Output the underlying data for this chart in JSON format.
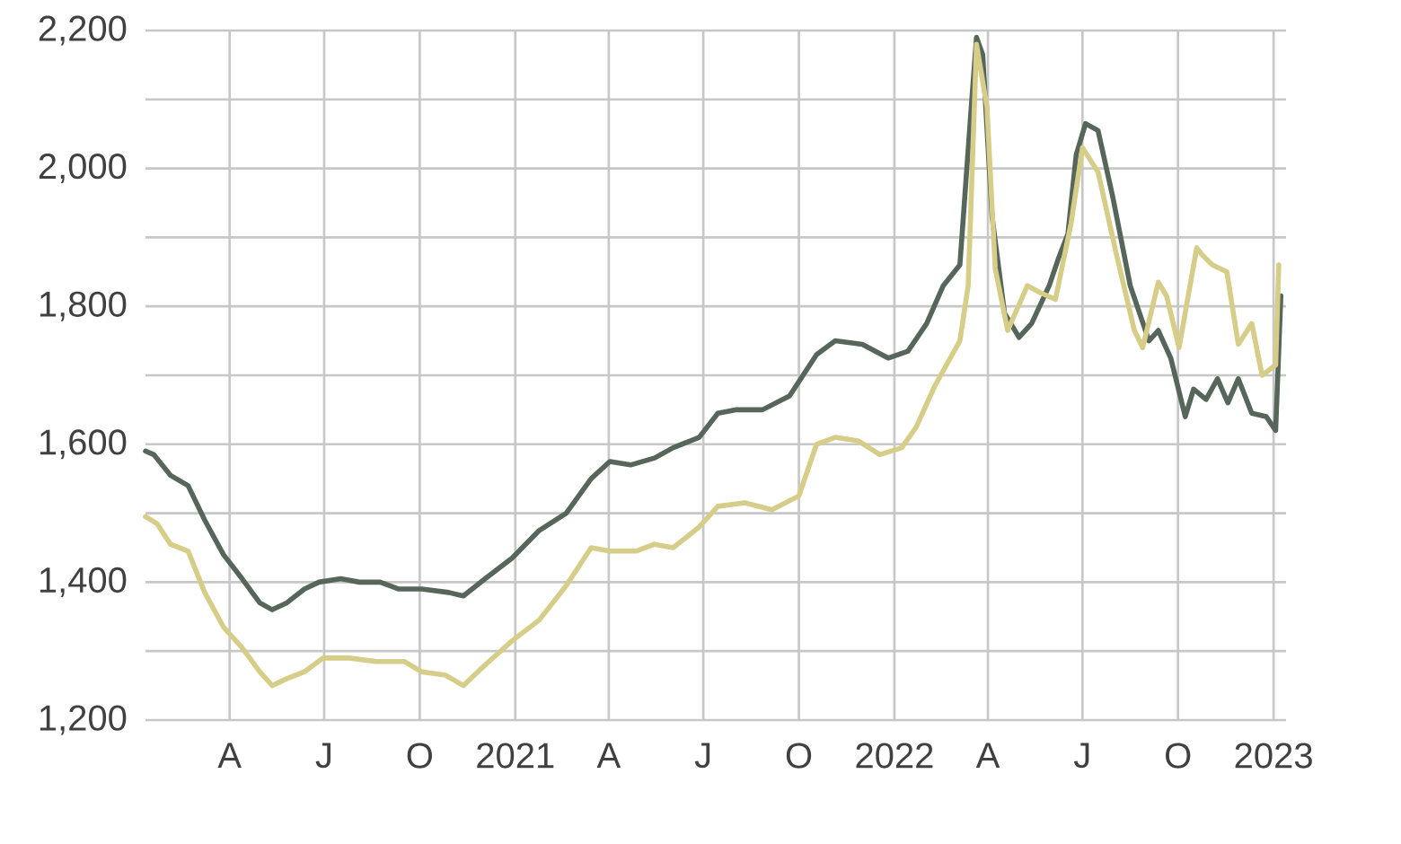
{
  "chart_data": {
    "type": "line",
    "xlim": [
      "2020-01-11",
      "2023-01-13"
    ],
    "ylim": [
      1200,
      2200
    ],
    "xticks": [
      {
        "value": "2020-04-01",
        "label": "A"
      },
      {
        "value": "2020-07-01",
        "label": "J"
      },
      {
        "value": "2020-10-01",
        "label": "O"
      },
      {
        "value": "2021-01-01",
        "label": "2021"
      },
      {
        "value": "2021-04-01",
        "label": "A"
      },
      {
        "value": "2021-07-01",
        "label": "J"
      },
      {
        "value": "2021-10-01",
        "label": "O"
      },
      {
        "value": "2022-01-01",
        "label": "2022"
      },
      {
        "value": "2022-04-01",
        "label": "A"
      },
      {
        "value": "2022-07-01",
        "label": "J"
      },
      {
        "value": "2022-10-01",
        "label": "O"
      },
      {
        "value": "2023-01-01",
        "label": "2023"
      }
    ],
    "yticks": [
      {
        "value": 1200,
        "label": "1,200"
      },
      {
        "value": 1300,
        "label": null
      },
      {
        "value": 1400,
        "label": "1,400"
      },
      {
        "value": 1500,
        "label": null
      },
      {
        "value": 1600,
        "label": "1,600"
      },
      {
        "value": 1700,
        "label": null
      },
      {
        "value": 1800,
        "label": "1,800"
      },
      {
        "value": 1900,
        "label": null
      },
      {
        "value": 2000,
        "label": "2,000"
      },
      {
        "value": 2100,
        "label": null
      },
      {
        "value": 2200,
        "label": "2,200"
      }
    ],
    "grid": true,
    "series": [
      {
        "color": "#56665a",
        "x": [
          "2020-01-11",
          "2020-01-19",
          "2020-02-04",
          "2020-02-21",
          "2020-03-08",
          "2020-03-26",
          "2020-04-13",
          "2020-04-30",
          "2020-05-12",
          "2020-05-26",
          "2020-06-12",
          "2020-06-26",
          "2020-07-17",
          "2020-08-04",
          "2020-08-24",
          "2020-09-11",
          "2020-10-03",
          "2020-10-29",
          "2020-11-12",
          "2020-12-03",
          "2020-12-29",
          "2021-01-24",
          "2021-02-19",
          "2021-03-15",
          "2021-04-02",
          "2021-04-22",
          "2021-05-15",
          "2021-06-02",
          "2021-06-27",
          "2021-07-15",
          "2021-08-01",
          "2021-08-27",
          "2021-09-22",
          "2021-10-18",
          "2021-11-05",
          "2021-12-01",
          "2021-12-26",
          "2022-01-14",
          "2022-02-01",
          "2022-02-17",
          "2022-03-05",
          "2022-03-16",
          "2022-03-21",
          "2022-03-27",
          "2022-04-05",
          "2022-04-17",
          "2022-05-01",
          "2022-05-13",
          "2022-05-30",
          "2022-06-08",
          "2022-06-17",
          "2022-06-25",
          "2022-07-04",
          "2022-07-16",
          "2022-07-30",
          "2022-08-16",
          "2022-09-03",
          "2022-09-12",
          "2022-09-24",
          "2022-10-08",
          "2022-10-16",
          "2022-10-28",
          "2022-11-08",
          "2022-11-18",
          "2022-11-28",
          "2022-12-11",
          "2022-12-25",
          "2023-01-03",
          "2023-01-08"
        ],
        "values": [
          1590,
          1585,
          1555,
          1540,
          1490,
          1440,
          1405,
          1370,
          1360,
          1370,
          1390,
          1400,
          1405,
          1400,
          1400,
          1390,
          1390,
          1385,
          1380,
          1405,
          1435,
          1475,
          1500,
          1550,
          1575,
          1570,
          1580,
          1595,
          1610,
          1645,
          1650,
          1650,
          1670,
          1730,
          1750,
          1745,
          1725,
          1735,
          1775,
          1830,
          1860,
          2090,
          2190,
          2165,
          1930,
          1790,
          1755,
          1775,
          1830,
          1870,
          1905,
          2020,
          2065,
          2055,
          1960,
          1830,
          1750,
          1765,
          1725,
          1640,
          1680,
          1665,
          1695,
          1660,
          1695,
          1645,
          1640,
          1620,
          1815
        ]
      },
      {
        "color": "#d6cd88",
        "x": [
          "2020-01-11",
          "2020-01-22",
          "2020-02-04",
          "2020-02-21",
          "2020-03-08",
          "2020-03-26",
          "2020-04-13",
          "2020-04-30",
          "2020-05-12",
          "2020-05-26",
          "2020-06-12",
          "2020-06-30",
          "2020-07-25",
          "2020-08-20",
          "2020-09-16",
          "2020-10-03",
          "2020-10-26",
          "2020-11-12",
          "2020-12-03",
          "2020-12-29",
          "2021-01-24",
          "2021-02-19",
          "2021-03-15",
          "2021-04-02",
          "2021-04-27",
          "2021-05-15",
          "2021-06-02",
          "2021-06-27",
          "2021-07-15",
          "2021-08-10",
          "2021-09-05",
          "2021-10-01",
          "2021-10-18",
          "2021-11-05",
          "2021-11-27",
          "2021-12-18",
          "2022-01-08",
          "2022-01-22",
          "2022-02-09",
          "2022-03-05",
          "2022-03-13",
          "2022-03-21",
          "2022-03-31",
          "2022-04-08",
          "2022-04-20",
          "2022-05-09",
          "2022-05-21",
          "2022-06-05",
          "2022-06-20",
          "2022-07-01",
          "2022-07-16",
          "2022-08-02",
          "2022-08-20",
          "2022-08-28",
          "2022-09-12",
          "2022-09-20",
          "2022-10-02",
          "2022-10-19",
          "2022-10-24",
          "2022-11-03",
          "2022-11-17",
          "2022-11-28",
          "2022-12-11",
          "2022-12-21",
          "2023-01-03",
          "2023-01-06"
        ],
        "values": [
          1495,
          1485,
          1455,
          1445,
          1385,
          1335,
          1305,
          1270,
          1250,
          1260,
          1270,
          1290,
          1290,
          1285,
          1285,
          1270,
          1265,
          1250,
          1280,
          1315,
          1345,
          1395,
          1450,
          1445,
          1445,
          1455,
          1450,
          1480,
          1510,
          1515,
          1505,
          1525,
          1600,
          1610,
          1605,
          1585,
          1595,
          1625,
          1685,
          1750,
          1830,
          2180,
          2090,
          1855,
          1765,
          1830,
          1820,
          1810,
          1920,
          2030,
          1995,
          1880,
          1765,
          1740,
          1835,
          1815,
          1740,
          1885,
          1875,
          1860,
          1850,
          1745,
          1775,
          1700,
          1715,
          1860
        ]
      }
    ]
  }
}
